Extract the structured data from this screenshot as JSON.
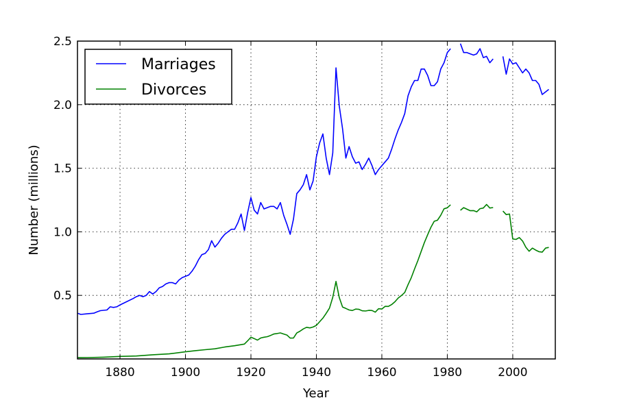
{
  "chart_data": {
    "type": "line",
    "xlabel": "Year",
    "ylabel": "Number (millions)",
    "xlim": [
      1867,
      2013
    ],
    "ylim": [
      0,
      2.5
    ],
    "xticks": [
      1880,
      1900,
      1920,
      1940,
      1960,
      1980,
      2000
    ],
    "yticks": [
      0.5,
      1.0,
      1.5,
      2.0,
      2.5
    ],
    "ytick_labels": [
      "0.5",
      "1.0",
      "1.5",
      "2.0",
      "2.5"
    ],
    "grid": true,
    "legend_position": "top-left",
    "series": [
      {
        "name": "Marriages",
        "color": "#0000ff",
        "points": [
          [
            1867,
            0.36
          ],
          [
            1868,
            0.35
          ],
          [
            1870,
            0.355
          ],
          [
            1872,
            0.36
          ],
          [
            1873,
            0.37
          ],
          [
            1874,
            0.38
          ],
          [
            1876,
            0.385
          ],
          [
            1877,
            0.41
          ],
          [
            1878,
            0.405
          ],
          [
            1879,
            0.41
          ],
          [
            1880,
            0.425
          ],
          [
            1882,
            0.45
          ],
          [
            1884,
            0.475
          ],
          [
            1885,
            0.49
          ],
          [
            1886,
            0.5
          ],
          [
            1887,
            0.49
          ],
          [
            1888,
            0.5
          ],
          [
            1889,
            0.53
          ],
          [
            1890,
            0.51
          ],
          [
            1891,
            0.53
          ],
          [
            1892,
            0.56
          ],
          [
            1893,
            0.57
          ],
          [
            1894,
            0.59
          ],
          [
            1895,
            0.6
          ],
          [
            1896,
            0.6
          ],
          [
            1897,
            0.59
          ],
          [
            1898,
            0.62
          ],
          [
            1899,
            0.64
          ],
          [
            1900,
            0.65
          ],
          [
            1901,
            0.66
          ],
          [
            1902,
            0.69
          ],
          [
            1903,
            0.73
          ],
          [
            1904,
            0.78
          ],
          [
            1905,
            0.82
          ],
          [
            1906,
            0.83
          ],
          [
            1907,
            0.86
          ],
          [
            1908,
            0.93
          ],
          [
            1909,
            0.88
          ],
          [
            1910,
            0.91
          ],
          [
            1911,
            0.95
          ],
          [
            1912,
            0.98
          ],
          [
            1913,
            1.0
          ],
          [
            1914,
            1.02
          ],
          [
            1915,
            1.02
          ],
          [
            1916,
            1.07
          ],
          [
            1917,
            1.14
          ],
          [
            1918,
            1.01
          ],
          [
            1919,
            1.15
          ],
          [
            1920,
            1.27
          ],
          [
            1921,
            1.17
          ],
          [
            1922,
            1.14
          ],
          [
            1923,
            1.23
          ],
          [
            1924,
            1.18
          ],
          [
            1925,
            1.19
          ],
          [
            1926,
            1.2
          ],
          [
            1927,
            1.2
          ],
          [
            1928,
            1.18
          ],
          [
            1929,
            1.23
          ],
          [
            1930,
            1.13
          ],
          [
            1931,
            1.06
          ],
          [
            1932,
            0.98
          ],
          [
            1933,
            1.1
          ],
          [
            1934,
            1.3
          ],
          [
            1935,
            1.33
          ],
          [
            1936,
            1.37
          ],
          [
            1937,
            1.45
          ],
          [
            1938,
            1.33
          ],
          [
            1939,
            1.4
          ],
          [
            1940,
            1.59
          ],
          [
            1941,
            1.7
          ],
          [
            1942,
            1.77
          ],
          [
            1943,
            1.58
          ],
          [
            1944,
            1.45
          ],
          [
            1945,
            1.62
          ],
          [
            1946,
            2.29
          ],
          [
            1947,
            1.99
          ],
          [
            1948,
            1.81
          ],
          [
            1949,
            1.58
          ],
          [
            1950,
            1.67
          ],
          [
            1951,
            1.59
          ],
          [
            1952,
            1.54
          ],
          [
            1953,
            1.55
          ],
          [
            1954,
            1.49
          ],
          [
            1955,
            1.53
          ],
          [
            1956,
            1.58
          ],
          [
            1957,
            1.52
          ],
          [
            1958,
            1.45
          ],
          [
            1959,
            1.49
          ],
          [
            1960,
            1.52
          ],
          [
            1961,
            1.55
          ],
          [
            1962,
            1.58
          ],
          [
            1963,
            1.65
          ],
          [
            1964,
            1.73
          ],
          [
            1965,
            1.8
          ],
          [
            1966,
            1.86
          ],
          [
            1967,
            1.93
          ],
          [
            1968,
            2.07
          ],
          [
            1969,
            2.14
          ],
          [
            1970,
            2.19
          ],
          [
            1971,
            2.19
          ],
          [
            1972,
            2.28
          ],
          [
            1973,
            2.28
          ],
          [
            1974,
            2.23
          ],
          [
            1975,
            2.15
          ],
          [
            1976,
            2.15
          ],
          [
            1977,
            2.18
          ],
          [
            1978,
            2.28
          ],
          [
            1979,
            2.33
          ],
          [
            1980,
            2.41
          ],
          [
            1981,
            2.44
          ],
          null,
          [
            1984,
            2.48
          ],
          [
            1985,
            2.41
          ],
          [
            1986,
            2.41
          ],
          [
            1987,
            2.4
          ],
          [
            1988,
            2.39
          ],
          [
            1989,
            2.4
          ],
          [
            1990,
            2.44
          ],
          [
            1991,
            2.37
          ],
          [
            1992,
            2.38
          ],
          [
            1993,
            2.33
          ],
          [
            1994,
            2.36
          ],
          null,
          [
            1997,
            2.38
          ],
          [
            1998,
            2.24
          ],
          [
            1999,
            2.36
          ],
          [
            2000,
            2.32
          ],
          [
            2001,
            2.33
          ],
          [
            2002,
            2.29
          ],
          [
            2003,
            2.25
          ],
          [
            2004,
            2.28
          ],
          [
            2005,
            2.25
          ],
          [
            2006,
            2.19
          ],
          [
            2007,
            2.19
          ],
          [
            2008,
            2.16
          ],
          [
            2009,
            2.08
          ],
          [
            2010,
            2.1
          ],
          [
            2011,
            2.12
          ]
        ]
      },
      {
        "name": "Divorces",
        "color": "#008000",
        "points": [
          [
            1867,
            0.01
          ],
          [
            1870,
            0.011
          ],
          [
            1875,
            0.014
          ],
          [
            1880,
            0.02
          ],
          [
            1885,
            0.023
          ],
          [
            1890,
            0.033
          ],
          [
            1895,
            0.04
          ],
          [
            1900,
            0.056
          ],
          [
            1903,
            0.065
          ],
          [
            1906,
            0.073
          ],
          [
            1909,
            0.08
          ],
          [
            1912,
            0.094
          ],
          [
            1915,
            0.104
          ],
          [
            1918,
            0.117
          ],
          [
            1919,
            0.142
          ],
          [
            1920,
            0.171
          ],
          [
            1921,
            0.16
          ],
          [
            1922,
            0.148
          ],
          [
            1923,
            0.165
          ],
          [
            1924,
            0.171
          ],
          [
            1925,
            0.175
          ],
          [
            1926,
            0.185
          ],
          [
            1927,
            0.196
          ],
          [
            1928,
            0.2
          ],
          [
            1929,
            0.205
          ],
          [
            1930,
            0.196
          ],
          [
            1931,
            0.188
          ],
          [
            1932,
            0.164
          ],
          [
            1933,
            0.165
          ],
          [
            1934,
            0.204
          ],
          [
            1935,
            0.218
          ],
          [
            1936,
            0.236
          ],
          [
            1937,
            0.249
          ],
          [
            1938,
            0.244
          ],
          [
            1939,
            0.251
          ],
          [
            1940,
            0.264
          ],
          [
            1941,
            0.293
          ],
          [
            1942,
            0.321
          ],
          [
            1943,
            0.359
          ],
          [
            1944,
            0.4
          ],
          [
            1945,
            0.485
          ],
          [
            1946,
            0.61
          ],
          [
            1947,
            0.483
          ],
          [
            1948,
            0.408
          ],
          [
            1949,
            0.397
          ],
          [
            1950,
            0.385
          ],
          [
            1951,
            0.381
          ],
          [
            1952,
            0.392
          ],
          [
            1953,
            0.39
          ],
          [
            1954,
            0.379
          ],
          [
            1955,
            0.377
          ],
          [
            1956,
            0.382
          ],
          [
            1957,
            0.381
          ],
          [
            1958,
            0.368
          ],
          [
            1959,
            0.395
          ],
          [
            1960,
            0.393
          ],
          [
            1961,
            0.414
          ],
          [
            1962,
            0.413
          ],
          [
            1963,
            0.428
          ],
          [
            1964,
            0.45
          ],
          [
            1965,
            0.479
          ],
          [
            1966,
            0.499
          ],
          [
            1967,
            0.523
          ],
          [
            1968,
            0.584
          ],
          [
            1969,
            0.639
          ],
          [
            1970,
            0.708
          ],
          [
            1971,
            0.773
          ],
          [
            1972,
            0.845
          ],
          [
            1973,
            0.915
          ],
          [
            1974,
            0.977
          ],
          [
            1975,
            1.036
          ],
          [
            1976,
            1.083
          ],
          [
            1977,
            1.091
          ],
          [
            1978,
            1.13
          ],
          [
            1979,
            1.181
          ],
          [
            1980,
            1.189
          ],
          [
            1981,
            1.213
          ],
          null,
          [
            1984,
            1.169
          ],
          [
            1985,
            1.19
          ],
          [
            1986,
            1.178
          ],
          [
            1987,
            1.166
          ],
          [
            1988,
            1.167
          ],
          [
            1989,
            1.157
          ],
          [
            1990,
            1.182
          ],
          [
            1991,
            1.187
          ],
          [
            1992,
            1.215
          ],
          [
            1993,
            1.187
          ],
          [
            1994,
            1.191
          ],
          null,
          [
            1997,
            1.163
          ],
          [
            1998,
            1.135
          ],
          [
            1999,
            1.14
          ],
          [
            2000,
            0.944
          ],
          [
            2001,
            0.94
          ],
          [
            2002,
            0.955
          ],
          [
            2003,
            0.927
          ],
          [
            2004,
            0.879
          ],
          [
            2005,
            0.847
          ],
          [
            2006,
            0.872
          ],
          [
            2007,
            0.856
          ],
          [
            2008,
            0.844
          ],
          [
            2009,
            0.84
          ],
          [
            2010,
            0.872
          ],
          [
            2011,
            0.877
          ]
        ]
      }
    ]
  }
}
